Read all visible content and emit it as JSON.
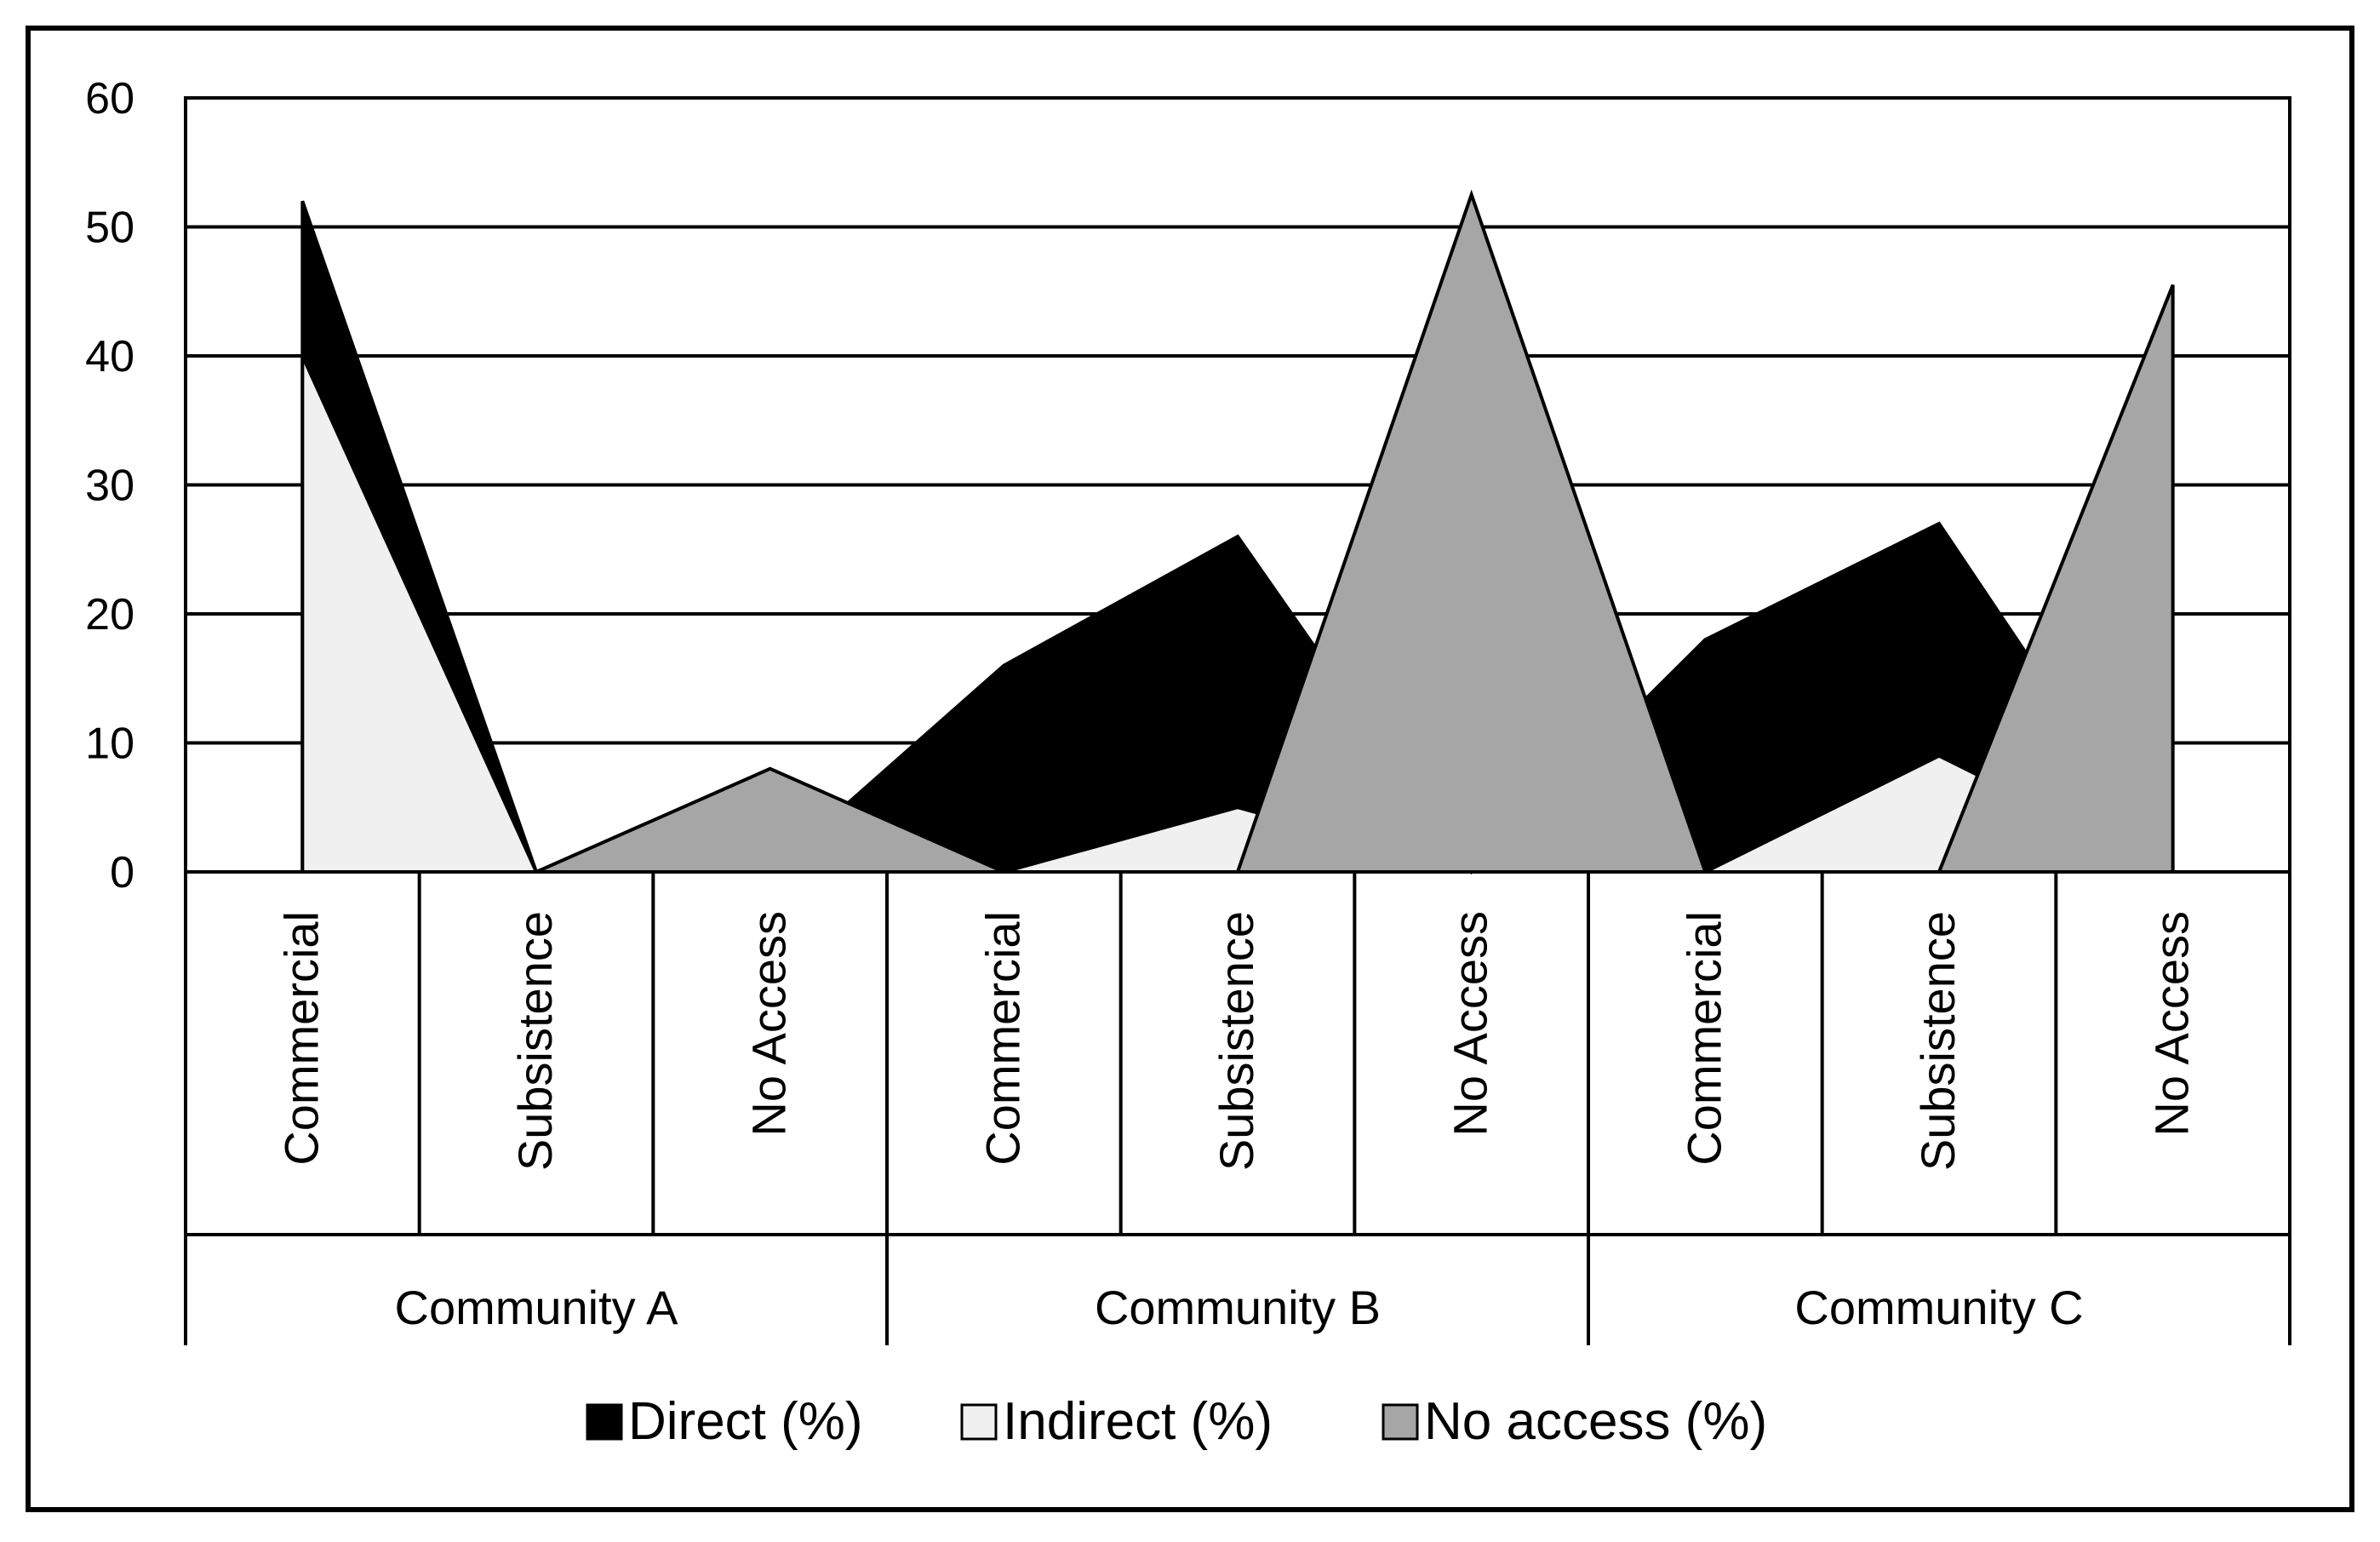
{
  "chart_data": {
    "type": "area",
    "title": "",
    "xlabel": "",
    "ylabel": "",
    "ylim": [
      0,
      60
    ],
    "yticks": [
      0,
      10,
      20,
      30,
      40,
      50,
      60
    ],
    "grid": true,
    "legend_position": "bottom",
    "groups": [
      {
        "name": "Community A",
        "categories": [
          "Commercial",
          "Subsistence",
          "No Access"
        ]
      },
      {
        "name": "Community B",
        "categories": [
          "Commercial",
          "Subsistence",
          "No Access"
        ]
      },
      {
        "name": "Community C",
        "categories": [
          "Commercial",
          "Subsistence",
          "No Access"
        ]
      }
    ],
    "categories": [
      "Commercial",
      "Subsistence",
      "No Access",
      "Commercial",
      "Subsistence",
      "No Access",
      "Commercial",
      "Subsistence",
      "No Access"
    ],
    "series": [
      {
        "name": "Direct (%)",
        "color": "#000000",
        "values": [
          52,
          0,
          0,
          16,
          26,
          0,
          18,
          27,
          0
        ]
      },
      {
        "name": "Indirect (%)",
        "color": "#f0f0f0",
        "values": [
          40,
          0,
          0,
          0,
          5,
          0,
          0,
          9,
          0
        ]
      },
      {
        "name": "No access (%)",
        "color": "#a6a6a6",
        "values": [
          0,
          0,
          8,
          0,
          0,
          52.5,
          0,
          0,
          45.5
        ]
      }
    ]
  }
}
